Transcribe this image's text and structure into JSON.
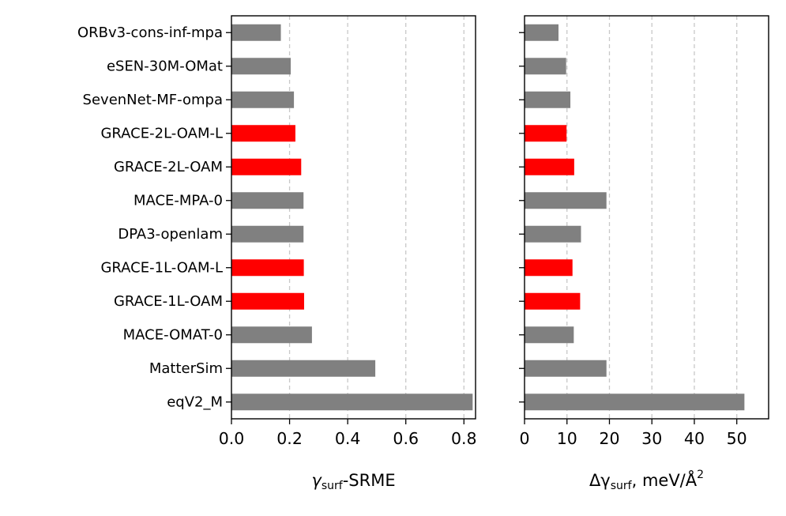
{
  "chart_data": [
    {
      "type": "bar",
      "orientation": "horizontal",
      "xlabel_main": "γ",
      "xlabel_sub": "surf",
      "xlabel_rest": "-SRME",
      "xlim": [
        0,
        0.84
      ],
      "xticks": [
        0.0,
        0.2,
        0.4,
        0.6,
        0.8
      ],
      "xtick_labels": [
        "0.0",
        "0.2",
        "0.4",
        "0.6",
        "0.8"
      ],
      "grid": "vertical dashed",
      "categories": [
        "ORBv3-cons-inf-mpa",
        "eSEN-30M-OMat",
        "SevenNet-MF-ompa",
        "GRACE-2L-OAM-L",
        "GRACE-2L-OAM",
        "MACE-MPA-0",
        "DPA3-openlam",
        "GRACE-1L-OAM-L",
        "GRACE-1L-OAM",
        "MACE-OMAT-0",
        "MatterSim",
        "eqV2_M"
      ],
      "values": [
        0.17,
        0.204,
        0.215,
        0.22,
        0.24,
        0.248,
        0.248,
        0.249,
        0.25,
        0.277,
        0.495,
        0.83
      ],
      "highlight": [
        false,
        false,
        false,
        true,
        true,
        false,
        false,
        true,
        true,
        false,
        false,
        false
      ]
    },
    {
      "type": "bar",
      "orientation": "horizontal",
      "xlabel_pre": "Δγ",
      "xlabel_sub": "surf",
      "xlabel_rest": ", meV/Å",
      "xlabel_sup": "2",
      "xlim": [
        0,
        57.5
      ],
      "xticks": [
        0,
        10,
        20,
        30,
        40,
        50
      ],
      "xtick_labels": [
        "0",
        "10",
        "20",
        "30",
        "40",
        "50"
      ],
      "grid": "vertical dashed",
      "categories": [
        "ORBv3-cons-inf-mpa",
        "eSEN-30M-OMat",
        "SevenNet-MF-ompa",
        "GRACE-2L-OAM-L",
        "GRACE-2L-OAM",
        "MACE-MPA-0",
        "DPA3-openlam",
        "GRACE-1L-OAM-L",
        "GRACE-1L-OAM",
        "MACE-OMAT-0",
        "MatterSim",
        "eqV2_M"
      ],
      "values": [
        8.0,
        9.8,
        10.8,
        9.9,
        11.7,
        19.3,
        13.3,
        11.3,
        13.1,
        11.6,
        19.3,
        51.8
      ],
      "highlight": [
        false,
        false,
        false,
        true,
        true,
        false,
        false,
        true,
        true,
        false,
        false,
        false
      ]
    }
  ],
  "colors": {
    "default_bar": "#808080",
    "highlight_bar": "#ff0000",
    "grid": "#c8c8c8",
    "axis": "#000000",
    "background": "#ffffff"
  }
}
